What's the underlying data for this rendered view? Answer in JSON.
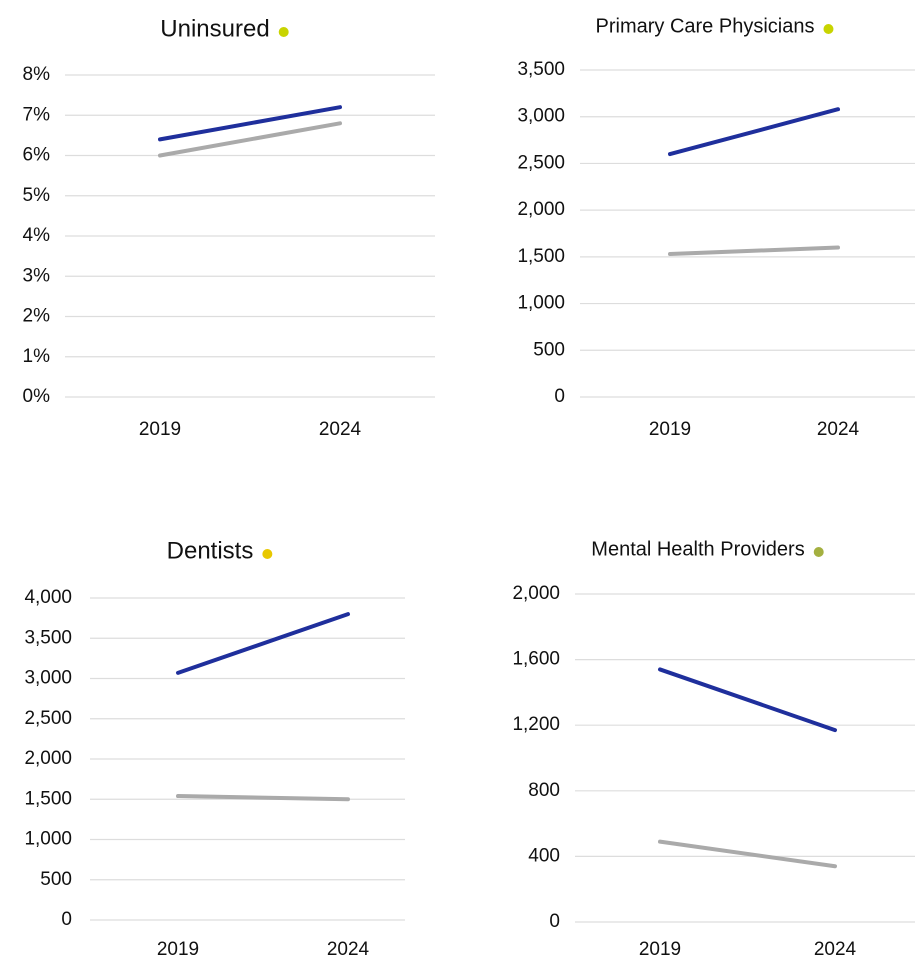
{
  "chart_data": [
    {
      "type": "line",
      "title": "Uninsured",
      "title_dot_color": "#c8d400",
      "categories": [
        "2019",
        "2024"
      ],
      "series": [
        {
          "color": "#1f2f9c",
          "values": [
            6.4,
            7.2
          ]
        },
        {
          "color": "#aaaaaa",
          "values": [
            6.0,
            6.8
          ]
        }
      ],
      "ylim": [
        0,
        8
      ],
      "yticks": [
        {
          "value": 0,
          "label": "0%"
        },
        {
          "value": 1,
          "label": "1%"
        },
        {
          "value": 2,
          "label": "2%"
        },
        {
          "value": 3,
          "label": "3%"
        },
        {
          "value": 4,
          "label": "4%"
        },
        {
          "value": 5,
          "label": "5%"
        },
        {
          "value": 6,
          "label": "6%"
        },
        {
          "value": 7,
          "label": "7%"
        },
        {
          "value": 8,
          "label": "8%"
        }
      ],
      "grid": true
    },
    {
      "type": "line",
      "title": "Primary Care Physicians",
      "title_dot_color": "#c8d400",
      "categories": [
        "2019",
        "2024"
      ],
      "series": [
        {
          "color": "#1f2f9c",
          "values": [
            2600,
            3080
          ]
        },
        {
          "color": "#aaaaaa",
          "values": [
            1530,
            1600
          ]
        }
      ],
      "ylim": [
        0,
        3500
      ],
      "yticks": [
        0,
        500,
        {
          "value": 1000,
          "label": "1,000"
        },
        {
          "value": 1500,
          "label": "1,500"
        },
        {
          "value": 2000,
          "label": "2,000"
        },
        {
          "value": 2500,
          "label": "2,500"
        },
        {
          "value": 3000,
          "label": "3,000"
        },
        {
          "value": 3500,
          "label": "3,500"
        }
      ],
      "grid": true
    },
    {
      "type": "line",
      "title": "Dentists",
      "title_dot_color": "#e8c800",
      "categories": [
        "2019",
        "2024"
      ],
      "series": [
        {
          "color": "#1f2f9c",
          "values": [
            3070,
            3800
          ]
        },
        {
          "color": "#aaaaaa",
          "values": [
            1540,
            1500
          ]
        }
      ],
      "ylim": [
        0,
        4000
      ],
      "yticks": [
        0,
        500,
        {
          "value": 1000,
          "label": "1,000"
        },
        {
          "value": 1500,
          "label": "1,500"
        },
        {
          "value": 2000,
          "label": "2,000"
        },
        {
          "value": 2500,
          "label": "2,500"
        },
        {
          "value": 3000,
          "label": "3,000"
        },
        {
          "value": 3500,
          "label": "3,500"
        },
        {
          "value": 4000,
          "label": "4,000"
        }
      ],
      "grid": true
    },
    {
      "type": "line",
      "title": "Mental Health Providers",
      "title_dot_color": "#a4b040",
      "categories": [
        "2019",
        "2024"
      ],
      "series": [
        {
          "color": "#1f2f9c",
          "values": [
            1540,
            1170
          ]
        },
        {
          "color": "#aaaaaa",
          "values": [
            490,
            340
          ]
        }
      ],
      "ylim": [
        0,
        2000
      ],
      "yticks": [
        0,
        400,
        800,
        {
          "value": 1200,
          "label": "1,200"
        },
        {
          "value": 1600,
          "label": "1,600"
        },
        {
          "value": 2000,
          "label": "2,000"
        }
      ],
      "grid": true
    }
  ]
}
